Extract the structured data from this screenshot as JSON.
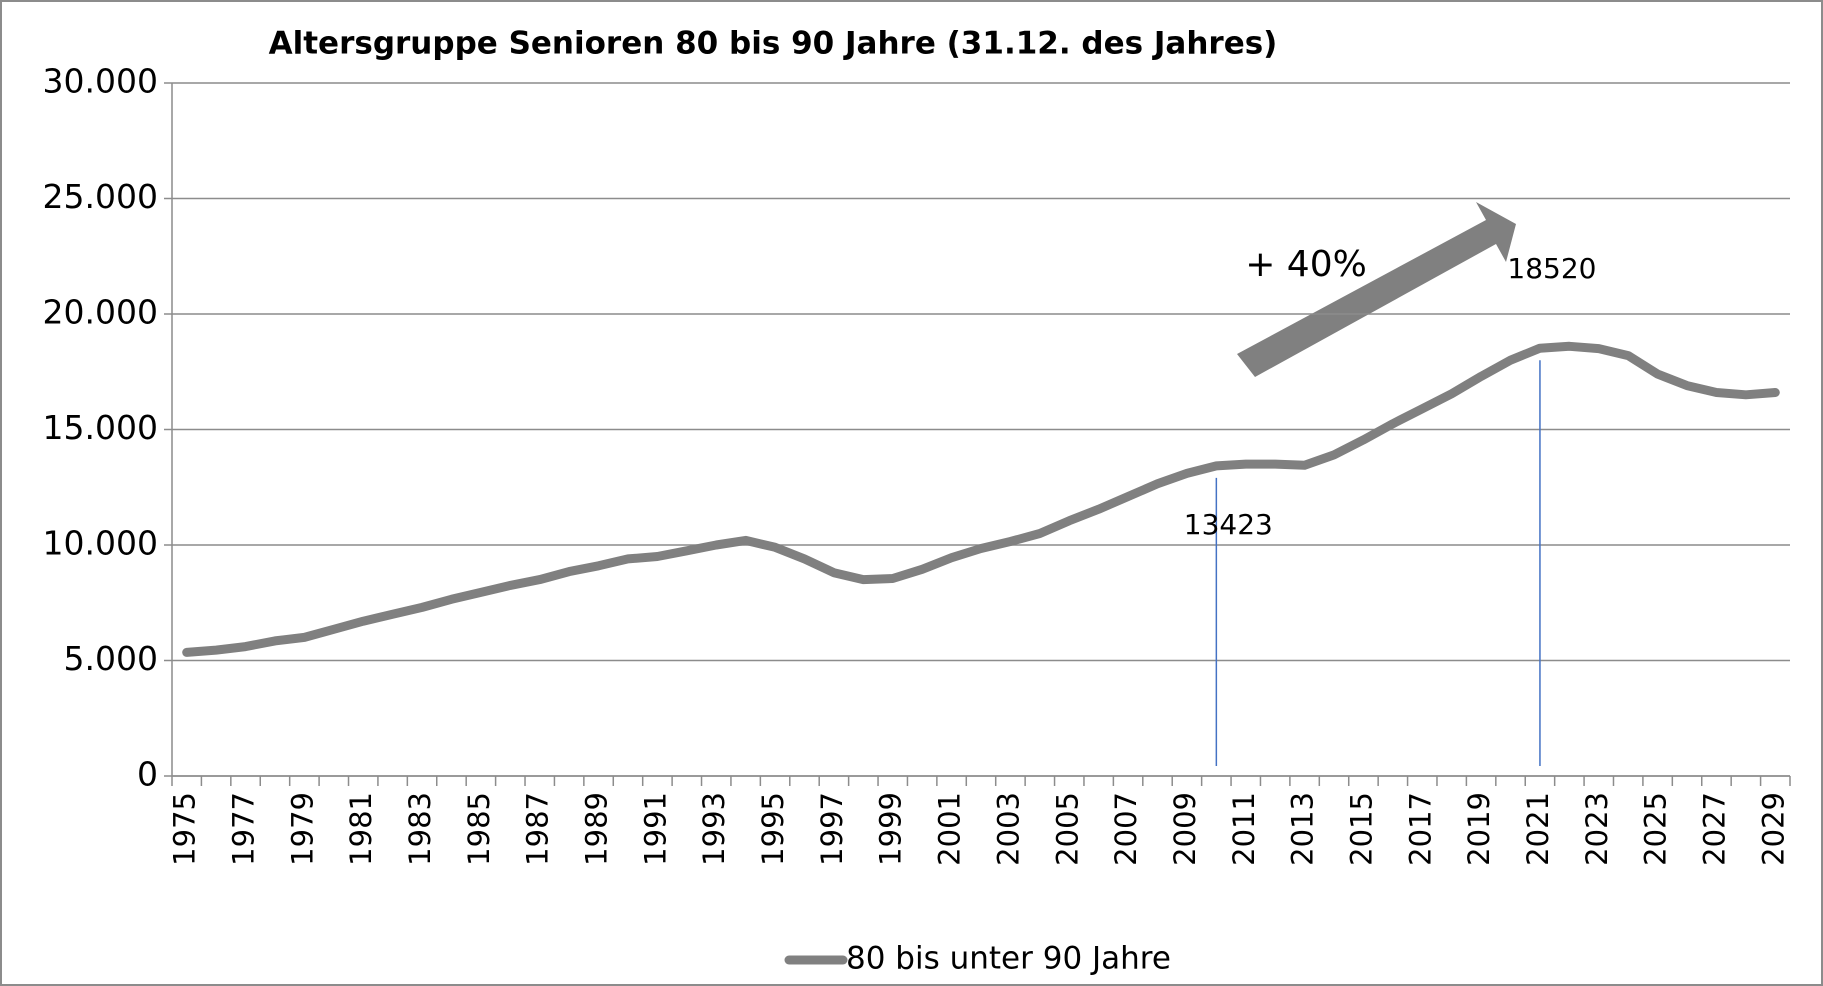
{
  "chart_data": {
    "type": "line",
    "title": "Altersgruppe Senioren 80 bis 90 Jahre (31.12. des Jahres)",
    "annotation": "+ 40%",
    "categories": [
      "1975",
      null,
      "1977",
      null,
      "1979",
      null,
      "1981",
      null,
      "1983",
      null,
      "1985",
      null,
      "1987",
      null,
      "1989",
      null,
      "1991",
      null,
      "1993",
      null,
      "1995",
      null,
      "1997",
      null,
      "1999",
      null,
      "2001",
      null,
      "2003",
      null,
      "2005",
      null,
      "2007",
      null,
      "2009",
      null,
      "2011",
      null,
      "2013",
      null,
      "2015",
      null,
      "2017",
      null,
      "2019",
      null,
      "2021",
      null,
      "2023",
      null,
      "2025",
      null,
      "2027",
      null,
      "2029"
    ],
    "series": [
      {
        "name": "80 bis unter 90 Jahre",
        "color": "#808080",
        "values": [
          5350,
          5450,
          5600,
          5850,
          6000,
          6350,
          6700,
          7000,
          7300,
          7650,
          7950,
          8250,
          8500,
          8850,
          9100,
          9400,
          9500,
          9750,
          10000,
          10200,
          9900,
          9400,
          8800,
          8500,
          8550,
          8950,
          9450,
          9850,
          10150,
          10500,
          11050,
          11550,
          12100,
          12650,
          13100,
          13423,
          13500,
          13500,
          13450,
          13900,
          14550,
          15250,
          15900,
          16550,
          17300,
          18000,
          18520,
          18600,
          18500,
          18200,
          17400,
          16900,
          16600,
          16500,
          16600
        ],
        "value_labels": [
          null,
          null,
          null,
          null,
          null,
          null,
          null,
          null,
          null,
          null,
          null,
          null,
          null,
          null,
          null,
          null,
          null,
          null,
          null,
          null,
          null,
          null,
          null,
          null,
          null,
          null,
          null,
          null,
          null,
          null,
          null,
          null,
          null,
          null,
          null,
          "13423",
          null,
          null,
          null,
          null,
          null,
          null,
          null,
          null,
          null,
          null,
          "18520",
          null,
          null,
          null,
          null,
          null,
          null,
          null,
          null
        ]
      }
    ],
    "ylim": [
      0,
      30000
    ],
    "yticks": [
      0,
      {
        "value": 5000,
        "label": "5.000"
      },
      {
        "value": 10000,
        "label": "10.000"
      },
      {
        "value": 15000,
        "label": "15.000"
      },
      {
        "value": 20000,
        "label": "20.000"
      },
      {
        "value": 25000,
        "label": "25.000"
      },
      {
        "value": 30000,
        "label": "30.000"
      }
    ],
    "grid": true,
    "legend": "bottom"
  }
}
